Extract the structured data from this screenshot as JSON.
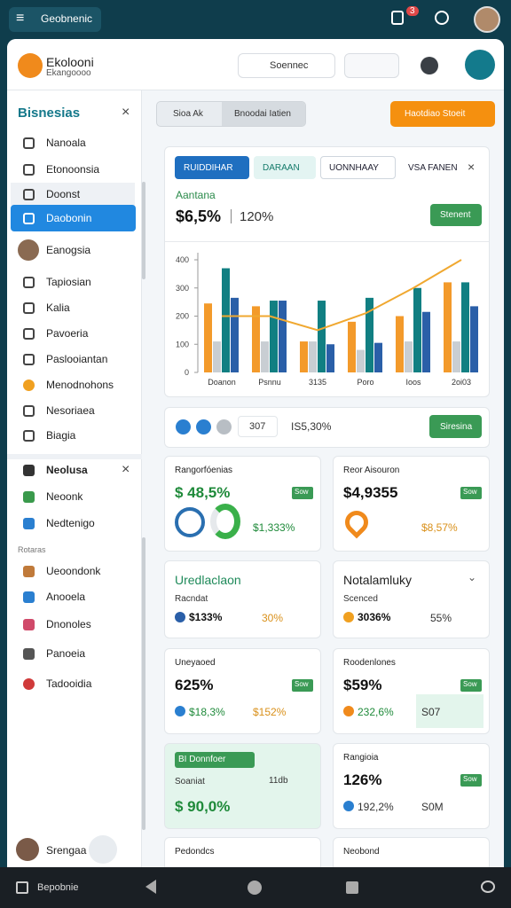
{
  "status_bar": {
    "app": "Geobnenic",
    "badge": "3"
  },
  "header": {
    "title": "Ekolooni",
    "subtitle": "Ekangoooo",
    "search": "Soennec"
  },
  "sidebar": {
    "title": "Bisnesias",
    "items": [
      "Nanoala",
      "Etonoonsia",
      "Doonst",
      "Daobonin",
      "Eanogsia",
      "Tapiosian",
      "Kalia",
      "Pavoeria",
      "Paslooiantan",
      "Menodnohons",
      "Nesoriaea",
      "Biagia"
    ],
    "section2": [
      "Neolusa",
      "Neoonk",
      "Nedtenigo"
    ],
    "section3_label": "Rotaras",
    "section3": [
      "Ueoondonk",
      "Anooela",
      "Dnonoles",
      "Panoeia",
      "Tadooidia"
    ],
    "user": "Srengaa"
  },
  "toolbar": {
    "tabs": [
      "Sioa Ak",
      "Bnoodai Iatien"
    ],
    "button": "Haotdiao Stoeit"
  },
  "panel": {
    "tabs": [
      "RUIDDIHAR",
      "DARAAN",
      "UONNHAAY",
      "VSA FANEN"
    ],
    "label": "Aantana",
    "value": "$6,5%",
    "compare": "120%",
    "button": "Stenent"
  },
  "chart": {
    "type": "bar",
    "categories": [
      "Doanon",
      "Psnnu",
      "3135",
      "Poro",
      "Ioos",
      "2oi03"
    ],
    "series": [
      {
        "color": "#f39a2b",
        "values": [
          245,
          235,
          110,
          180,
          200,
          320
        ]
      },
      {
        "color": "#c9ced3",
        "values": [
          110,
          110,
          110,
          80,
          110,
          110
        ]
      },
      {
        "color": "#117f82",
        "values": [
          370,
          255,
          255,
          265,
          300,
          320
        ]
      },
      {
        "color": "#2a5fa8",
        "values": [
          265,
          255,
          100,
          105,
          215,
          235
        ]
      },
      {
        "type": "line",
        "color": "#f0a830",
        "values": [
          200,
          200,
          150,
          210,
          300,
          400
        ]
      }
    ],
    "ylim": [
      0,
      400
    ],
    "yticks": [
      0,
      100,
      200,
      300,
      400
    ]
  },
  "filter": {
    "value": "307",
    "text": "IS5,30%",
    "button": "Siresina"
  },
  "cards": [
    {
      "title": "Rangorfóenias",
      "value": "$ 48,5%",
      "badge": "Sow",
      "extra": "$1,333%"
    },
    {
      "title": "Reor Aisouron",
      "value": "$4,9355",
      "badge": "Sow",
      "extra": "$8,57%"
    },
    {
      "title": "Uredlaclaon",
      "sub": "Racndat",
      "value": "$133%",
      "extra": "30%"
    },
    {
      "title": "Notalamluky",
      "sub": "Scenced",
      "value": "3036%",
      "extra": "55%"
    },
    {
      "title": "Uneyaoed",
      "value": "625%",
      "badge": "Sow",
      "sub": "$18,3%",
      "extra": "$152%"
    },
    {
      "title": "Roodenlones",
      "value": "$59%",
      "badge": "Sow",
      "sub": "232,6%",
      "extra": "S07"
    },
    {
      "title": "BI Donnfoer",
      "sub": "Soaniat",
      "badge": "11db",
      "value": "$ 90,0%"
    },
    {
      "title": "Rangioia",
      "value": "126%",
      "badge": "Sow",
      "sub": "192,2%",
      "extra": "S0M"
    },
    {
      "title": "Pedondcs"
    },
    {
      "title": "Neobond"
    }
  ],
  "bottom_nav": {
    "label": "Bepobnie"
  }
}
